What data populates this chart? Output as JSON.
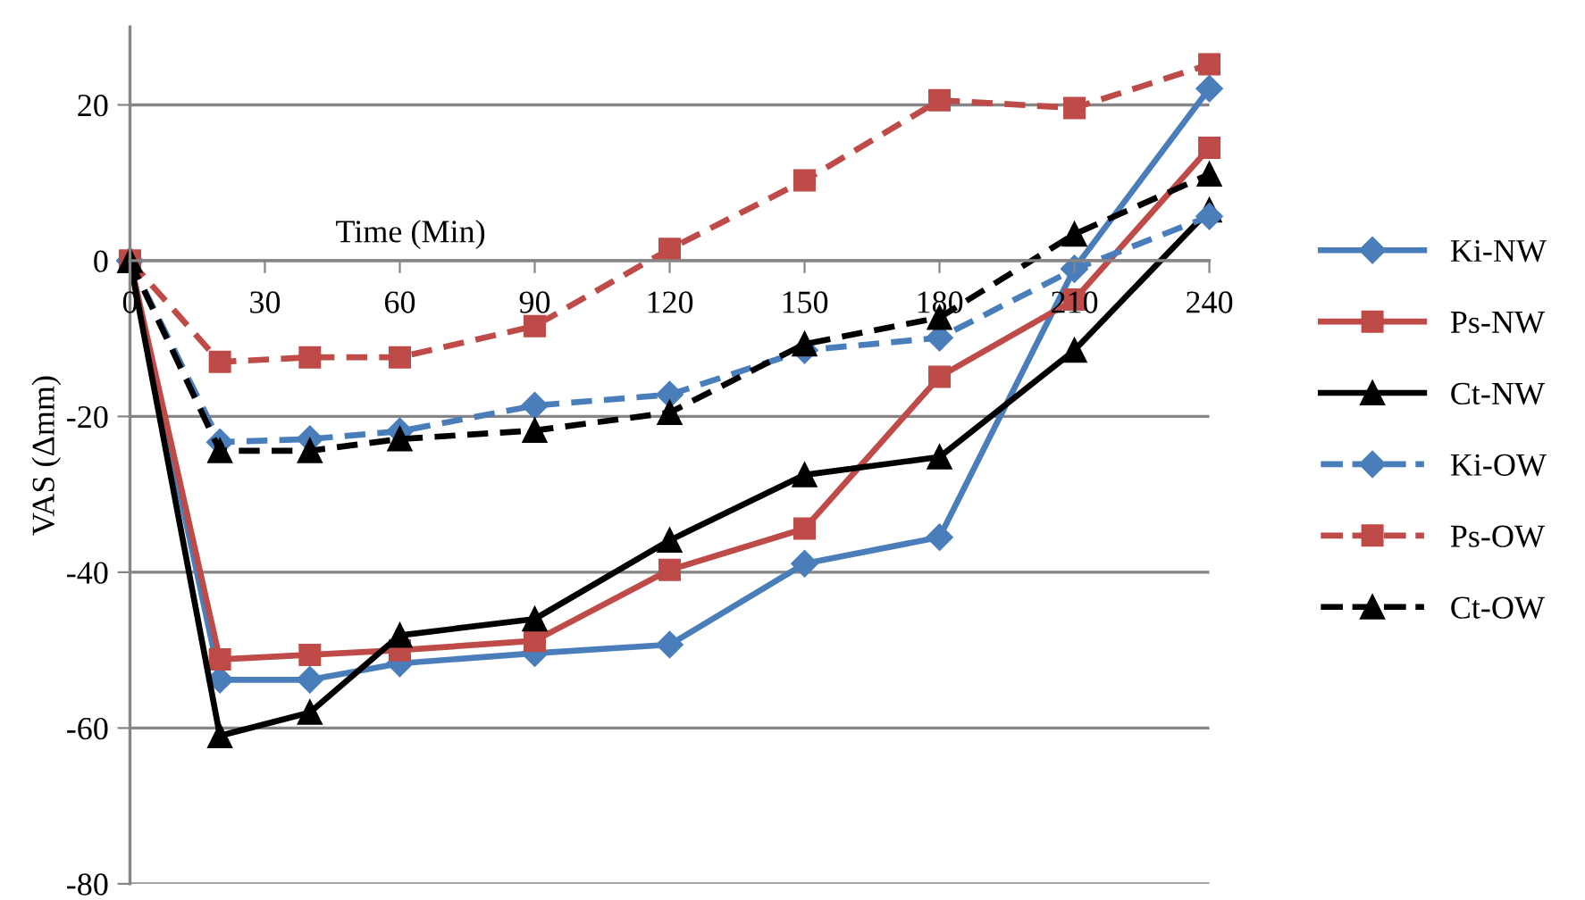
{
  "chart_data": {
    "type": "line",
    "xlabel": "Time (Min)",
    "ylabel": "VAS (Δmm)",
    "x": [
      0,
      20,
      40,
      60,
      90,
      120,
      150,
      180,
      210,
      240
    ],
    "xlim": [
      0,
      240
    ],
    "xticks": [
      0,
      30,
      60,
      90,
      120,
      150,
      180,
      210,
      240
    ],
    "ylim": [
      -80,
      30
    ],
    "yticks": [
      -80,
      -60,
      -40,
      -20,
      0,
      20
    ],
    "grid": "y",
    "legend": "right",
    "series": [
      {
        "name": "Ki-NW",
        "color": "#4a7ebb",
        "marker": "diamond",
        "line_style": "solid",
        "values": [
          0,
          -53.8,
          -53.8,
          -51.7,
          -50.4,
          -49.3,
          -38.9,
          -35.5,
          -1,
          22.1
        ]
      },
      {
        "name": "Ps-NW",
        "color": "#be4b48",
        "marker": "square",
        "line_style": "solid",
        "values": [
          0,
          -51.2,
          -50.6,
          -50,
          -48.8,
          -39.7,
          -34.4,
          -14.9,
          -5,
          14.5
        ]
      },
      {
        "name": "Ct-NW",
        "color": "#000000",
        "marker": "triangle",
        "line_style": "solid",
        "values": [
          0,
          -61,
          -58,
          -48.1,
          -46,
          -35.9,
          -27.5,
          -25.2,
          -11.5,
          6.5
        ]
      },
      {
        "name": "Ki-OW",
        "color": "#4a7ebb",
        "marker": "diamond",
        "line_style": "dashed",
        "values": [
          0,
          -23.3,
          -22.9,
          -21.9,
          -18.6,
          -17.2,
          -11.5,
          -9.9,
          -1.1,
          5.7
        ]
      },
      {
        "name": "Ps-OW",
        "color": "#be4b48",
        "marker": "square",
        "line_style": "dashed",
        "values": [
          0,
          -13,
          -12.4,
          -12.4,
          -8.4,
          1.5,
          10.3,
          20.6,
          19.6,
          25.2
        ]
      },
      {
        "name": "Ct-OW",
        "color": "#000000",
        "marker": "triangle",
        "line_style": "dashed",
        "values": [
          0,
          -24.4,
          -24.4,
          -22.9,
          -21.8,
          -19.5,
          -10.7,
          -7.3,
          3.4,
          11.1
        ]
      }
    ]
  }
}
